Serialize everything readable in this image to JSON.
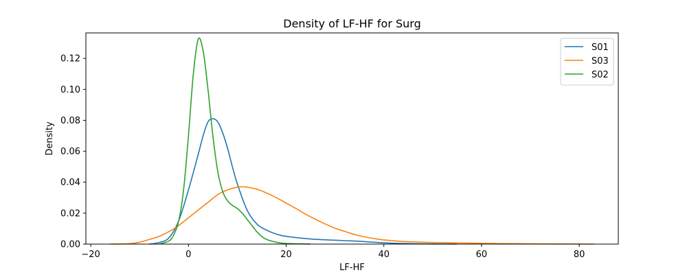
{
  "chart_data": {
    "type": "line",
    "title": "Density of LF-HF for Surg",
    "xlabel": "LF-HF",
    "ylabel": "Density",
    "xlim": [
      -21,
      88
    ],
    "ylim": [
      0,
      0.1365
    ],
    "xticks": [
      -20,
      0,
      20,
      40,
      60,
      80
    ],
    "yticks": [
      0.0,
      0.02,
      0.04,
      0.06,
      0.08,
      0.1,
      0.12
    ],
    "xtick_labels": [
      "−20",
      "0",
      "20",
      "40",
      "60",
      "80"
    ],
    "ytick_labels": [
      "0.00",
      "0.02",
      "0.04",
      "0.06",
      "0.08",
      "0.10",
      "0.12"
    ],
    "grid": false,
    "legend_position": "top-right",
    "series": [
      {
        "name": "S01",
        "color": "#1f77b4",
        "points": [
          [
            -8,
            0
          ],
          [
            -6,
            0.001
          ],
          [
            -4,
            0.004
          ],
          [
            -2,
            0.015
          ],
          [
            0,
            0.035
          ],
          [
            2,
            0.058
          ],
          [
            3,
            0.07
          ],
          [
            4,
            0.079
          ],
          [
            5,
            0.081
          ],
          [
            6,
            0.079
          ],
          [
            7,
            0.072
          ],
          [
            8,
            0.062
          ],
          [
            9,
            0.05
          ],
          [
            10,
            0.039
          ],
          [
            12,
            0.022
          ],
          [
            14,
            0.013
          ],
          [
            16,
            0.009
          ],
          [
            18,
            0.0065
          ],
          [
            20,
            0.005
          ],
          [
            25,
            0.0033
          ],
          [
            30,
            0.0025
          ],
          [
            35,
            0.0018
          ],
          [
            40,
            0.0008
          ],
          [
            45,
            0.0003
          ],
          [
            50,
            0.0001
          ],
          [
            55,
            0
          ]
        ]
      },
      {
        "name": "S03",
        "color": "#ff7f0e",
        "points": [
          [
            -16,
            0
          ],
          [
            -12,
            0.0003
          ],
          [
            -10,
            0.0012
          ],
          [
            -8,
            0.003
          ],
          [
            -6,
            0.005
          ],
          [
            -4,
            0.008
          ],
          [
            -2,
            0.012
          ],
          [
            0,
            0.017
          ],
          [
            2,
            0.022
          ],
          [
            4,
            0.027
          ],
          [
            6,
            0.032
          ],
          [
            8,
            0.035
          ],
          [
            10,
            0.0368
          ],
          [
            11,
            0.037
          ],
          [
            12,
            0.0368
          ],
          [
            14,
            0.0355
          ],
          [
            16,
            0.033
          ],
          [
            18,
            0.03
          ],
          [
            20,
            0.0265
          ],
          [
            22,
            0.023
          ],
          [
            24,
            0.0193
          ],
          [
            26,
            0.016
          ],
          [
            28,
            0.013
          ],
          [
            30,
            0.0103
          ],
          [
            32,
            0.0082
          ],
          [
            34,
            0.0062
          ],
          [
            36,
            0.0047
          ],
          [
            38,
            0.0036
          ],
          [
            40,
            0.0027
          ],
          [
            44,
            0.0017
          ],
          [
            48,
            0.0012
          ],
          [
            52,
            0.0009
          ],
          [
            56,
            0.0007
          ],
          [
            60,
            0.0005
          ],
          [
            65,
            0.0003
          ],
          [
            70,
            0.0002
          ],
          [
            75,
            0.0001
          ],
          [
            83,
            0
          ]
        ]
      },
      {
        "name": "S02",
        "color": "#2ca02c",
        "points": [
          [
            -6,
            0
          ],
          [
            -4,
            0.002
          ],
          [
            -3,
            0.006
          ],
          [
            -2,
            0.015
          ],
          [
            -1,
            0.035
          ],
          [
            0,
            0.07
          ],
          [
            1,
            0.11
          ],
          [
            2,
            0.1325
          ],
          [
            3,
            0.125
          ],
          [
            4,
            0.1
          ],
          [
            5,
            0.07
          ],
          [
            6,
            0.047
          ],
          [
            7,
            0.034
          ],
          [
            8,
            0.028
          ],
          [
            9,
            0.025
          ],
          [
            10,
            0.023
          ],
          [
            11,
            0.02
          ],
          [
            12,
            0.016
          ],
          [
            13,
            0.012
          ],
          [
            14,
            0.008
          ],
          [
            15,
            0.005
          ],
          [
            16,
            0.003
          ],
          [
            18,
            0.0012
          ],
          [
            20,
            0.0004
          ],
          [
            25,
            0
          ]
        ]
      }
    ]
  }
}
